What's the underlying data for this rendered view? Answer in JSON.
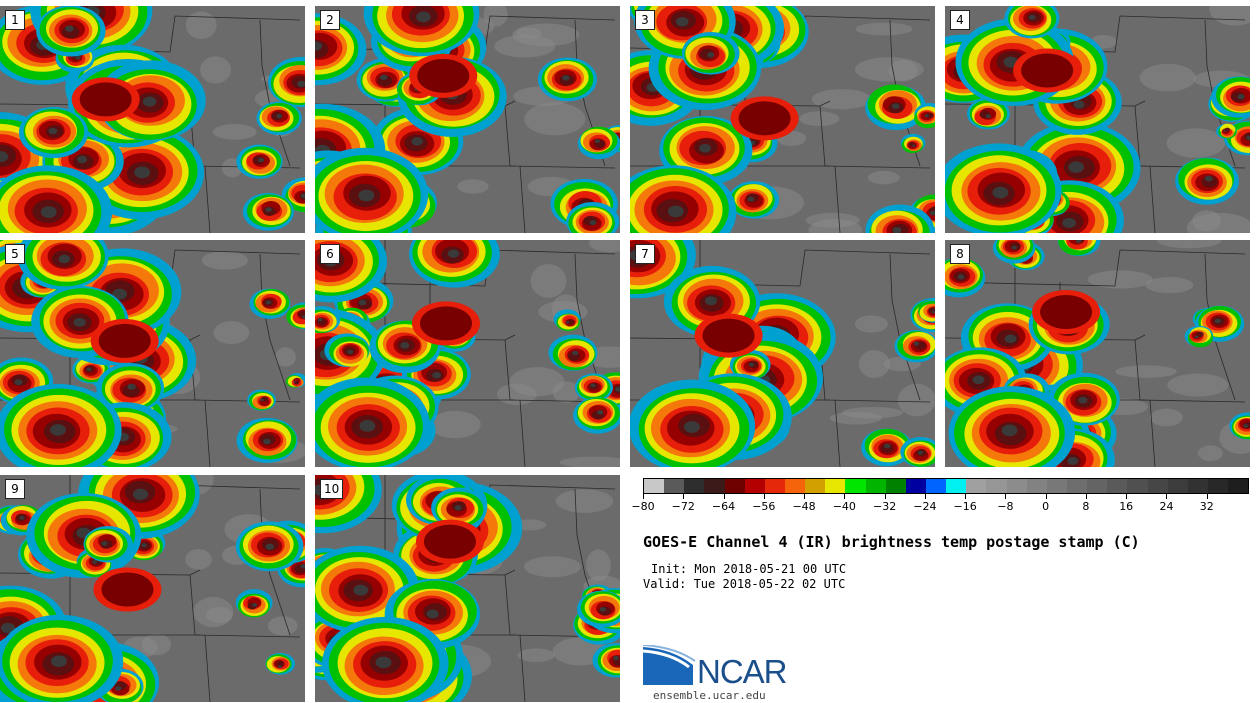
{
  "panels": [
    {
      "label": "1",
      "seed": 11
    },
    {
      "label": "2",
      "seed": 23
    },
    {
      "label": "3",
      "seed": 37
    },
    {
      "label": "4",
      "seed": 41
    },
    {
      "label": "5",
      "seed": 53
    },
    {
      "label": "6",
      "seed": 67
    },
    {
      "label": "7",
      "seed": 71
    },
    {
      "label": "8",
      "seed": 83
    },
    {
      "label": "9",
      "seed": 97
    },
    {
      "label": "10",
      "seed": 101
    }
  ],
  "colorbar": {
    "colors": [
      "#c8c8c8",
      "#5a5a5a",
      "#2e2e2e",
      "#3c1a1a",
      "#6e0000",
      "#b40000",
      "#e6280a",
      "#f5640a",
      "#d2a000",
      "#e6e600",
      "#00e600",
      "#00b400",
      "#008200",
      "#0000a0",
      "#0064ff",
      "#00f0f0",
      "#a0a0a0",
      "#969696",
      "#8c8c8c",
      "#828282",
      "#787878",
      "#6e6e6e",
      "#646464",
      "#5a5a5a",
      "#505050",
      "#464646",
      "#3c3c3c",
      "#323232",
      "#282828",
      "#1e1e1e"
    ],
    "ticks": [
      "−80",
      "−72",
      "−64",
      "−56",
      "−48",
      "−40",
      "−32",
      "−24",
      "−16",
      "−8",
      "0",
      "8",
      "16",
      "24",
      "32"
    ],
    "min": -80,
    "max": 40
  },
  "title": "GOES-E Channel 4 (IR) brightness temp postage stamp (C)",
  "init_line": "Init: Mon 2018-05-21 00 UTC",
  "valid_line": "Valid: Tue 2018-05-22 02 UTC",
  "logo_text": "NCAR",
  "site": "ensemble.ucar.edu"
}
